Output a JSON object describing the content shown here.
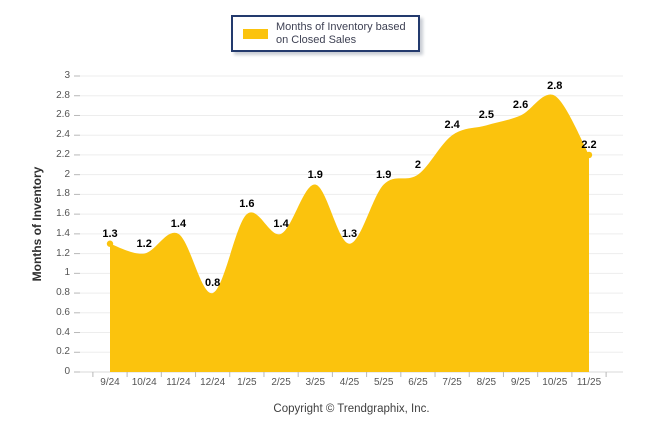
{
  "legend": {
    "label": "Months of Inventory based on Closed Sales"
  },
  "y_axis_title": "Months of Inventory",
  "footer": {
    "copyright": "Copyright © Trendgraphix, Inc."
  },
  "chart_data": {
    "type": "area",
    "title": "",
    "series_name": "Months of Inventory based on Closed Sales",
    "categories": [
      "9/24",
      "10/24",
      "11/24",
      "12/24",
      "1/25",
      "2/25",
      "3/25",
      "4/25",
      "5/25",
      "6/25",
      "7/25",
      "8/25",
      "9/25",
      "10/25",
      "11/25"
    ],
    "values": [
      1.3,
      1.2,
      1.4,
      0.8,
      1.6,
      1.4,
      1.9,
      1.3,
      1.9,
      2,
      2.4,
      2.5,
      2.6,
      2.8,
      2.2
    ],
    "point_labels": [
      "1.3",
      "1.2",
      "1.4",
      "0.8",
      "1.6",
      "1.4",
      "1.9",
      "1.3",
      "1.9",
      "2",
      "2.4",
      "2.5",
      "2.6",
      "2.8",
      "2.2"
    ],
    "xlabel": "",
    "ylabel": "Months of Inventory",
    "ylim": [
      0,
      3
    ],
    "ytick_step": 0.2,
    "grid": "horizontal",
    "legend_position": "top-center",
    "smooth": true,
    "colors": {
      "area": "#FBC30D",
      "point_label": "#000000",
      "grid": "#EDEDED",
      "axis": "#D9D9D9",
      "tick": "#B8B8B8",
      "legend_border": "#233A6D",
      "legend_text": "#3F4254",
      "tick_label": "#555555"
    }
  }
}
